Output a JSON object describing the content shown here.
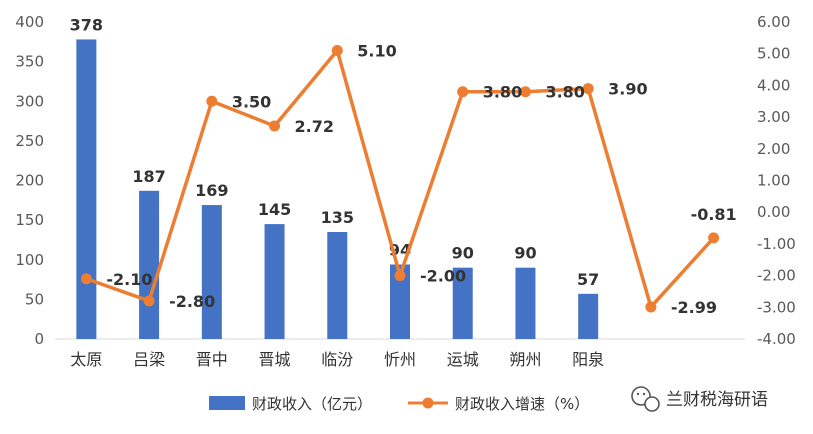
{
  "chart_data": {
    "type": "bar+line",
    "title": "",
    "categories": [
      "太原",
      "吕梁",
      "晋中",
      "晋城",
      "临汾",
      "忻州",
      "运城",
      "朔州",
      "阳泉",
      "",
      ""
    ],
    "series": [
      {
        "name": "财政收入（亿元）",
        "type": "bar",
        "axis": "left",
        "color": "#4472C4",
        "values": [
          378,
          187,
          169,
          145,
          135,
          94,
          90,
          90,
          57,
          null,
          null
        ],
        "labels": [
          "378",
          "187",
          "169",
          "145",
          "135",
          "94",
          "90",
          "90",
          "57",
          "",
          ""
        ]
      },
      {
        "name": "财政收入增速（%）",
        "type": "line",
        "axis": "right",
        "color": "#ED7D31",
        "values": [
          -2.1,
          -2.8,
          3.5,
          2.72,
          5.1,
          -2.0,
          3.8,
          3.8,
          3.9,
          -2.99,
          -0.81
        ],
        "labels": [
          "-2.10",
          "-2.80",
          "3.50",
          "2.72",
          "5.10",
          "-2.00",
          "3.80",
          "3.80",
          "3.90",
          "-2.99",
          "-0.81"
        ]
      }
    ],
    "y_left": {
      "min": 0,
      "max": 400,
      "step": 50,
      "tick_labels": [
        "0",
        "50",
        "100",
        "150",
        "200",
        "250",
        "300",
        "350",
        "400"
      ]
    },
    "y_right": {
      "min": -4,
      "max": 6,
      "step": 1,
      "tick_labels": [
        "-4.00",
        "-3.00",
        "-2.00",
        "-1.00",
        "0.00",
        "1.00",
        "2.00",
        "3.00",
        "4.00",
        "5.00",
        "6.00"
      ]
    },
    "grid": false,
    "legend": "bottom"
  },
  "legend": {
    "bar_label": "财政收入（亿元）",
    "line_label": "财政收入增速（%）"
  },
  "watermark": {
    "text": "兰财税海研语",
    "icon": "wechat-icon"
  }
}
